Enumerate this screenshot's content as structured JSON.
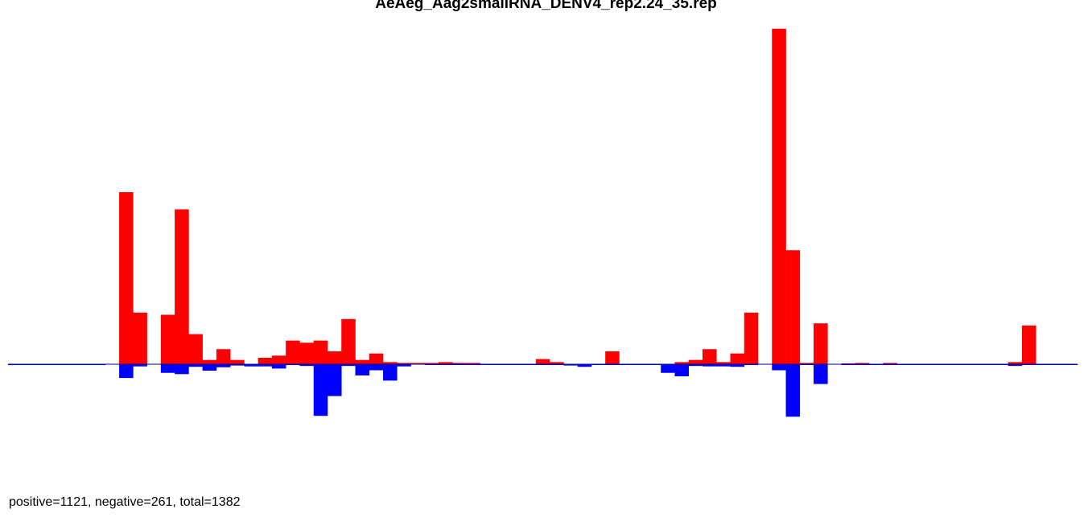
{
  "chart_data": {
    "type": "bar",
    "title": "AeAeg_Aag2smallRNA_DENV4_rep2.24_35.rep",
    "xlabel": "",
    "ylabel": "",
    "grid": false,
    "bin_count": 77,
    "ylim": [
      -22,
      77
    ],
    "colors": {
      "positive": "#ff0000",
      "negative": "#0000ff",
      "baseline": "#00008b"
    },
    "series": [
      {
        "name": "positive",
        "bins": [
          8,
          9,
          11,
          12,
          13,
          14,
          15,
          16,
          18,
          19,
          20,
          21,
          22,
          23,
          24,
          25,
          26,
          27,
          28,
          29,
          30,
          31,
          32,
          33,
          38,
          39,
          43,
          48,
          49,
          50,
          51,
          52,
          53,
          55,
          56,
          57,
          58,
          60,
          61,
          63,
          72,
          73
        ],
        "values": [
          40,
          12,
          11.5,
          36,
          7,
          1,
          3.5,
          1,
          1.5,
          2,
          5.5,
          5,
          5.5,
          3,
          10.5,
          1,
          2.5,
          0.5,
          0.3,
          0.3,
          0.3,
          0.5,
          0.3,
          0.3,
          1.2,
          0.5,
          3,
          0.5,
          1,
          3.5,
          0.5,
          2.5,
          12,
          78,
          26.5,
          0.3,
          9.5,
          0.2,
          0.3,
          0.3,
          0.5,
          9
        ]
      },
      {
        "name": "negative",
        "bins": [
          0,
          1,
          2,
          3,
          4,
          5,
          6,
          8,
          9,
          11,
          12,
          13,
          14,
          15,
          16,
          17,
          18,
          19,
          20,
          21,
          22,
          23,
          24,
          25,
          26,
          27,
          28,
          30,
          31,
          32,
          33,
          34,
          35,
          36,
          37,
          38,
          39,
          40,
          41,
          42,
          43,
          44,
          45,
          46,
          47,
          48,
          49,
          50,
          51,
          52,
          53,
          55,
          56,
          57,
          58,
          60,
          61,
          62,
          63,
          64,
          65,
          66,
          67,
          68,
          69,
          70,
          71,
          72,
          73,
          74,
          75,
          76
        ],
        "values": [
          0.2,
          0.2,
          0.2,
          0.2,
          0.2,
          0.2,
          0.2,
          3.2,
          0.5,
          2,
          2.3,
          0.6,
          1.5,
          0.7,
          0.3,
          0.5,
          0.5,
          1,
          0.2,
          0.4,
          12,
          7.4,
          0.4,
          2.6,
          1.4,
          3.8,
          0.5,
          0.1,
          0.1,
          0.1,
          0.1,
          0.1,
          0.1,
          0.1,
          0.1,
          0.1,
          0.1,
          0.3,
          0.6,
          0.1,
          0.1,
          0.1,
          0.1,
          0.1,
          2,
          2.8,
          0.4,
          0.5,
          0.5,
          0.6,
          0.1,
          1.4,
          12.2,
          0.1,
          4.6,
          0.1,
          0.1,
          0.1,
          0.1,
          0.1,
          0.1,
          0.1,
          0.1,
          0.1,
          0.1,
          0.1,
          0.1,
          0.4,
          0.1,
          0.1,
          0.1,
          0.1
        ]
      }
    ]
  },
  "summary_text": "positive=1121, negative=261, total=1382"
}
